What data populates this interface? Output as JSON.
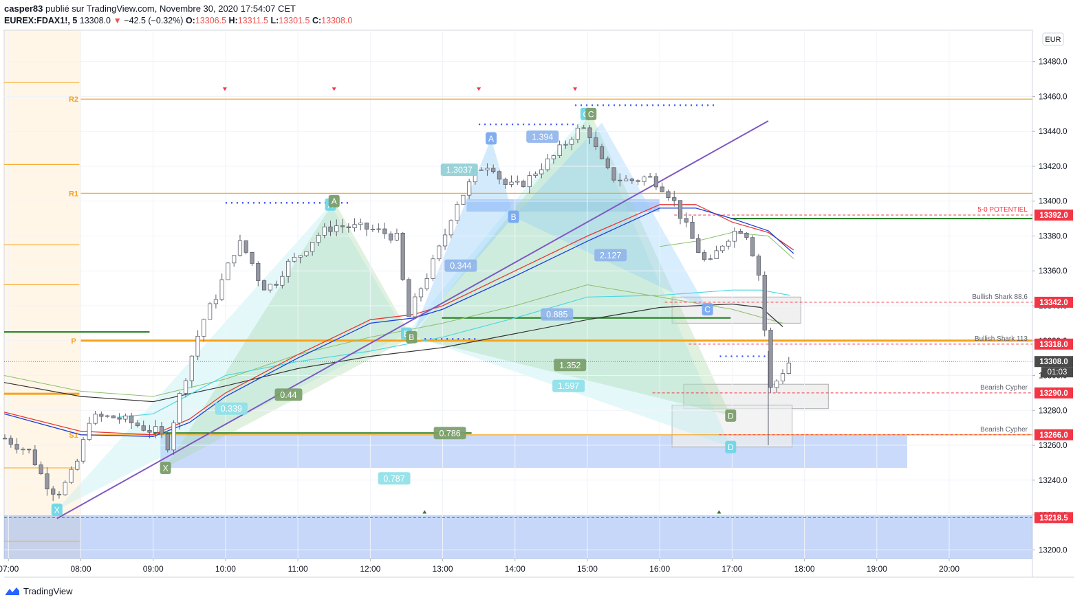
{
  "header": {
    "author": "casper83",
    "published": " publié sur TradingView.com, Novembre 30, 2020 17:54:07 CET",
    "symbol": "EUREX:FDAX1!, 5",
    "last": "13308.0",
    "change": "−42.5 (−0.32%)",
    "open_label": "O:",
    "open": "13306.5",
    "high_label": "H:",
    "high": "13311.5",
    "low_label": "L:",
    "low": "13301.5",
    "close_label": "C:",
    "close": "13308.0"
  },
  "footer": {
    "brand": "TradingView"
  },
  "colors": {
    "up_candle": "#ffffff",
    "down_candle": "#9598a1",
    "candle_border": "#5d606b",
    "pivot": "#f7a21b",
    "red_level": "#f23645",
    "green_level": "#1b7a1b",
    "blue_zone": "#5b8def",
    "ema_blue": "#1e3fd8",
    "ema_red": "#e53935",
    "ema_green": "#8bbf6b",
    "ema_cyan": "#4dd8e0",
    "ema_black": "#333333",
    "trendline": "#7e57c2"
  },
  "chart_data": {
    "type": "candlestick",
    "currency": "EUR",
    "ylim": [
      13195,
      13498
    ],
    "y_ticks": [
      13200,
      13220,
      13240,
      13260,
      13280,
      13300,
      13320,
      13340,
      13360,
      13380,
      13400,
      13420,
      13440,
      13460,
      13480
    ],
    "y_tick_labels": [
      "13200.0",
      "13220.0",
      "13240.0",
      "13260.0",
      "13280.0",
      "13300.0",
      "13320.0",
      "13340.0",
      "13360.0",
      "13380.0",
      "13400.0",
      "13420.0",
      "13440.0",
      "13460.0",
      "13480.0"
    ],
    "x_range_hours": [
      6.94,
      21.15
    ],
    "x_ticks": [
      7,
      8,
      9,
      10,
      11,
      12,
      13,
      14,
      15,
      16,
      17,
      18,
      19,
      20
    ],
    "x_tick_labels": [
      "07:00",
      "08:00",
      "09:00",
      "10:00",
      "11:00",
      "12:00",
      "13:00",
      "14:00",
      "15:00",
      "16:00",
      "17:00",
      "18:00",
      "19:00",
      "20:00"
    ],
    "price_badges": [
      {
        "value": 13392.0,
        "text": "13392.0",
        "color": "#f23645"
      },
      {
        "value": 13342.0,
        "text": "13342.0",
        "color": "#f23645"
      },
      {
        "value": 13318.0,
        "text": "13318.0",
        "color": "#f23645"
      },
      {
        "value": 13308.0,
        "text": "13308.0",
        "color": "#4a4a4a"
      },
      {
        "value": 13290.0,
        "text": "13290.0",
        "color": "#f23645"
      },
      {
        "value": 13266.0,
        "text": "13266.0",
        "color": "#f23645"
      },
      {
        "value": 13218.5,
        "text": "13218.5",
        "color": "#f23645"
      }
    ],
    "countdown": "01:03",
    "pivots": [
      {
        "label": "R2",
        "value": 13458.5
      },
      {
        "label": "R1",
        "value": 13404.5
      },
      {
        "label": "P",
        "value": 13320.0
      },
      {
        "label": "S1",
        "value": 13266.0
      }
    ],
    "level_annotations": [
      {
        "text": "5-0 POTENTIEL",
        "value": 13392.0
      },
      {
        "text": "Bullish Shark 88,6",
        "value": 13342.0
      },
      {
        "text": "Bullish Shark 113",
        "value": 13318.0
      },
      {
        "text": "Bearish Cypher",
        "value": 13290.0
      },
      {
        "text": "Bearish Cypher",
        "value": 13266.0
      }
    ],
    "pattern_points": [
      {
        "label": "X",
        "t": 7.67,
        "p": 13223,
        "color": "#6fd6e6"
      },
      {
        "label": "X",
        "t": 9.17,
        "p": 13247,
        "color": "#7a9e6a"
      },
      {
        "label": "A",
        "t": 11.45,
        "p": 13398,
        "color": "#6fd6e6"
      },
      {
        "label": "A",
        "t": 11.5,
        "p": 13400,
        "color": "#7a9e6a"
      },
      {
        "label": "B",
        "t": 12.5,
        "p": 13324,
        "color": "#6fd6e6"
      },
      {
        "label": "B",
        "t": 12.57,
        "p": 13322,
        "color": "#7a9e6a"
      },
      {
        "label": "A",
        "t": 13.67,
        "p": 13436,
        "color": "#79a8ef"
      },
      {
        "label": "B",
        "t": 13.98,
        "p": 13391,
        "color": "#79a8ef"
      },
      {
        "label": "C",
        "t": 14.98,
        "p": 13450,
        "color": "#6fd6e6"
      },
      {
        "label": "C",
        "t": 15.05,
        "p": 13450,
        "color": "#7a9e6a"
      },
      {
        "label": "C",
        "t": 16.66,
        "p": 13338,
        "color": "#79a8ef"
      },
      {
        "label": "D",
        "t": 16.98,
        "p": 13277,
        "color": "#7a9e6a"
      },
      {
        "label": "D",
        "t": 16.98,
        "p": 13259,
        "color": "#6fd6e6"
      }
    ],
    "ratios": [
      {
        "text": "1.3037",
        "t": 13.23,
        "p": 13418,
        "color": "#8fcfd6"
      },
      {
        "text": "1.394",
        "t": 14.38,
        "p": 13437,
        "color": "#8fb4ea"
      },
      {
        "text": "0.344",
        "t": 13.25,
        "p": 13363,
        "color": "#8fb4ea"
      },
      {
        "text": "2.127",
        "t": 15.32,
        "p": 13369,
        "color": "#8fb4ea"
      },
      {
        "text": "0.885",
        "t": 14.58,
        "p": 13335,
        "color": "#8fb4ea"
      },
      {
        "text": "1.352",
        "t": 14.76,
        "p": 13306,
        "color": "#7a9e6a"
      },
      {
        "text": "1.597",
        "t": 14.74,
        "p": 13294,
        "color": "#8fe0e8"
      },
      {
        "text": "0.44",
        "t": 10.87,
        "p": 13289,
        "color": "#7a9e6a"
      },
      {
        "text": "0.339",
        "t": 10.08,
        "p": 13281,
        "color": "#8fe0e8"
      },
      {
        "text": "0.786",
        "t": 13.1,
        "p": 13267,
        "color": "#7a9e6a"
      },
      {
        "text": "0.787",
        "t": 12.33,
        "p": 13241,
        "color": "#8fe0e8"
      }
    ],
    "candle_anchors": [
      [
        6.95,
        13264
      ],
      [
        7.3,
        13256
      ],
      [
        7.5,
        13239
      ],
      [
        7.67,
        13232
      ],
      [
        7.83,
        13240
      ],
      [
        8.0,
        13255
      ],
      [
        8.1,
        13275
      ],
      [
        8.3,
        13276
      ],
      [
        8.5,
        13276
      ],
      [
        8.75,
        13272
      ],
      [
        9.0,
        13268
      ],
      [
        9.1,
        13268
      ],
      [
        9.17,
        13255
      ],
      [
        9.35,
        13286
      ],
      [
        9.5,
        13307
      ],
      [
        9.67,
        13330
      ],
      [
        9.85,
        13344
      ],
      [
        10.0,
        13359
      ],
      [
        10.17,
        13377
      ],
      [
        10.33,
        13368
      ],
      [
        10.5,
        13351
      ],
      [
        10.67,
        13352
      ],
      [
        10.83,
        13363
      ],
      [
        11.0,
        13368
      ],
      [
        11.25,
        13380
      ],
      [
        11.5,
        13386
      ],
      [
        11.75,
        13385
      ],
      [
        12.0,
        13384
      ],
      [
        12.25,
        13381
      ],
      [
        12.4,
        13378
      ],
      [
        12.5,
        13330
      ],
      [
        12.67,
        13348
      ],
      [
        12.83,
        13361
      ],
      [
        13.0,
        13377
      ],
      [
        13.17,
        13398
      ],
      [
        13.33,
        13407
      ],
      [
        13.5,
        13419
      ],
      [
        13.67,
        13422
      ],
      [
        13.83,
        13410
      ],
      [
        14.0,
        13408
      ],
      [
        14.17,
        13412
      ],
      [
        14.33,
        13419
      ],
      [
        14.5,
        13424
      ],
      [
        14.67,
        13432
      ],
      [
        14.83,
        13440
      ],
      [
        15.0,
        13442
      ],
      [
        15.17,
        13424
      ],
      [
        15.33,
        13414
      ],
      [
        15.5,
        13412
      ],
      [
        15.67,
        13412
      ],
      [
        15.83,
        13414
      ],
      [
        16.0,
        13410
      ],
      [
        16.17,
        13402
      ],
      [
        16.33,
        13388
      ],
      [
        16.5,
        13374
      ],
      [
        16.67,
        13362
      ],
      [
        16.83,
        13374
      ],
      [
        17.0,
        13382
      ],
      [
        17.17,
        13385
      ],
      [
        17.33,
        13365
      ],
      [
        17.42,
        13348
      ],
      [
        17.5,
        13290
      ],
      [
        17.58,
        13295
      ],
      [
        17.67,
        13300
      ],
      [
        17.75,
        13307
      ],
      [
        17.83,
        13308
      ]
    ]
  }
}
